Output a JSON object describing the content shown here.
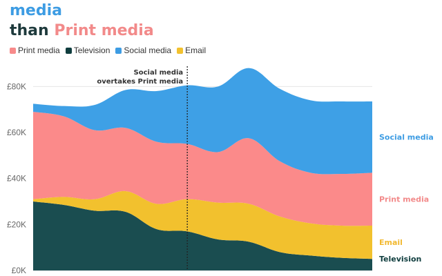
{
  "title": {
    "line1_part1": "",
    "line1_highlight": "media",
    "line2_part1": "than ",
    "line2_highlight": "Print media"
  },
  "legend": [
    {
      "label": "Print media",
      "color": "#f78a8a"
    },
    {
      "label": "Television",
      "color": "#0f3d3e"
    },
    {
      "label": "Social media",
      "color": "#3d9ce3"
    },
    {
      "label": "Email",
      "color": "#f2c12e"
    }
  ],
  "annotation": {
    "line1": "Social media",
    "line2": "overtakes Print media"
  },
  "colors": {
    "television": "#1a4d50",
    "email": "#f2c12e",
    "print": "#fb8a8a",
    "social": "#3ea0e6",
    "grid": "#e6e6e6",
    "axis": "#444444"
  },
  "chart_data": {
    "type": "area",
    "stacked": true,
    "x": [
      0,
      1,
      2,
      3,
      4,
      5,
      6,
      7,
      8,
      9,
      10,
      11
    ],
    "ylim": [
      0,
      90000
    ],
    "yticks": [
      {
        "value": 0,
        "label": "£0K"
      },
      {
        "value": 20000,
        "label": "£20K"
      },
      {
        "value": 40000,
        "label": "£40K"
      },
      {
        "value": 60000,
        "label": "£60K"
      },
      {
        "value": 80000,
        "label": "£80K"
      }
    ],
    "grid": true,
    "series": [
      {
        "name": "Television",
        "values": [
          30000,
          28500,
          26000,
          25500,
          18000,
          17000,
          13500,
          12500,
          8000,
          6500,
          5500,
          5000
        ],
        "label_color": "#0f3d3e"
      },
      {
        "name": "Email",
        "values": [
          1000,
          3500,
          5000,
          9000,
          11000,
          14000,
          16000,
          16500,
          15500,
          14000,
          14000,
          14500
        ],
        "label_color": "#f2b930"
      },
      {
        "name": "Print media",
        "values": [
          38000,
          35000,
          30000,
          27500,
          27000,
          24000,
          22000,
          28500,
          24000,
          22000,
          22500,
          23000
        ],
        "label_color": "#f28a8a"
      },
      {
        "name": "Social media",
        "values": [
          3500,
          4500,
          11000,
          16500,
          22000,
          25500,
          28500,
          30500,
          31500,
          31500,
          31500,
          31000
        ],
        "label_color": "#3d9ce3"
      }
    ],
    "annotation_x": 5
  }
}
